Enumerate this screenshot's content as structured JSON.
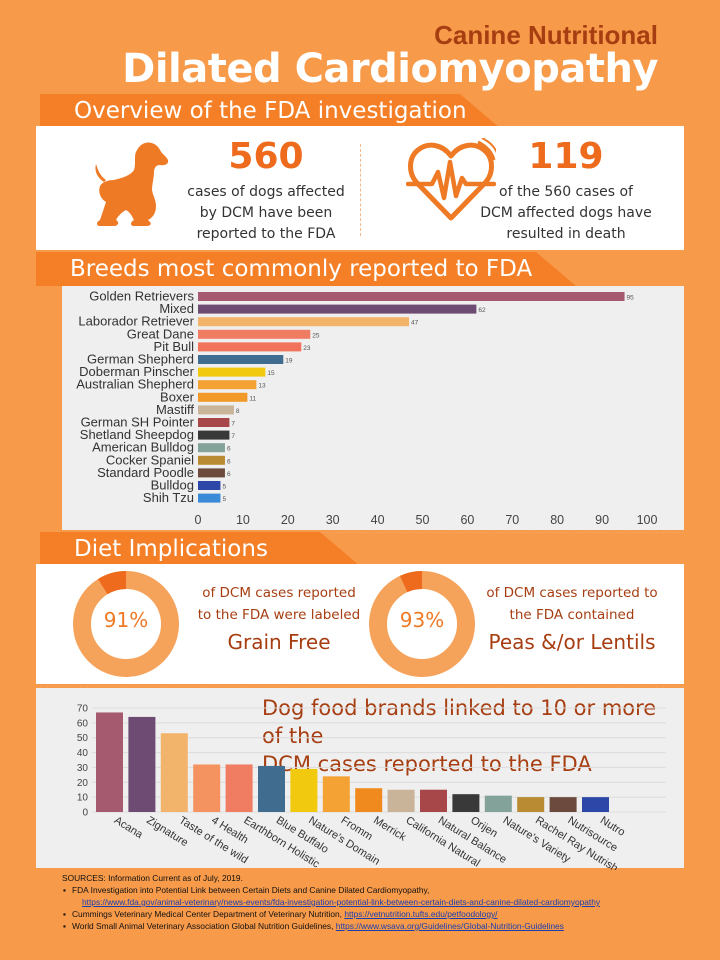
{
  "header": {
    "subtitle": "Canine Nutritional",
    "title": "Dilated Cardiomyopathy"
  },
  "overview": {
    "heading": "Overview of the FDA investigation",
    "stat1": {
      "number": "560",
      "lines": [
        "cases of dogs affected",
        "by DCM have been",
        "reported to the FDA"
      ],
      "icon": "dog-icon"
    },
    "stat2": {
      "number": "119",
      "lines": [
        "of the 560 cases of",
        "DCM affected dogs have",
        "resulted in death"
      ],
      "icon": "heartbeat-icon"
    }
  },
  "breeds": {
    "heading": "Breeds most commonly reported to FDA"
  },
  "diet": {
    "heading": "Diet Implications",
    "grain": {
      "percent": "91%",
      "fraction": 0.91,
      "line1": "of DCM cases reported",
      "line2": "to the FDA were labeled",
      "big": "Grain Free"
    },
    "peas": {
      "percent": "93%",
      "fraction": 0.93,
      "line1": "of DCM cases reported to",
      "line2": "the FDA contained",
      "big": "Peas &/or Lentils"
    }
  },
  "brands": {
    "title_line1": "Dog food brands linked to 10 or more of the",
    "title_line2": "DCM cases reported to the FDA"
  },
  "sources": {
    "label": "SOURCES: Information Current as of July, 2019.",
    "item1": "FDA Investigation into Potential Link between Certain Diets and Canine Dilated Cardiomyopathy,",
    "item1_url": "https://www.fda.gov/animal-veterinary/news-events/fda-investigation-potential-link-between-certain-diets-and-canine-dilated-cardiomyopathy",
    "item2": "Cummings Veterinary Medical Center Department of Veterinary Nutrition,",
    "item2_url": "https://vetnutrition.tufts.edu/petfoodology/",
    "item3": "World Small Animal Veterinary Association Global Nutrition Guidelines,",
    "item3_url": "https://www.wsava.org/Guidelines/Global-Nutrition-Guidelines"
  },
  "chart_data": [
    {
      "type": "bar",
      "orientation": "horizontal",
      "categories": [
        "Golden Retrievers",
        "Mixed",
        "Laborador Retriever",
        "Great Dane",
        "Pit Bull",
        "German Shepherd",
        "Doberman Pinscher",
        "Australian Shepherd",
        "Boxer",
        "Mastiff",
        "German SH Pointer",
        "Shetland Sheepdog",
        "American Bulldog",
        "Cocker Spaniel",
        "Standard Poodle",
        "Bulldog",
        "Shih Tzu"
      ],
      "values": [
        95,
        62,
        47,
        25,
        23,
        19,
        15,
        13,
        11,
        8,
        7,
        7,
        6,
        6,
        6,
        5,
        5
      ],
      "colors": [
        "#a55a6f",
        "#6e4b73",
        "#f2b36a",
        "#f07c62",
        "#f2735c",
        "#3f6c8f",
        "#f1c90e",
        "#f3a233",
        "#f19a2a",
        "#c9b49a",
        "#a8474a",
        "#393939",
        "#83a39a",
        "#b98b32",
        "#6c4a3d",
        "#2d47a8",
        "#3a8ad8"
      ],
      "xticks": [
        "0",
        "10",
        "20",
        "30",
        "40",
        "50",
        "60",
        "70",
        "80",
        "90",
        "100"
      ],
      "xlim": [
        0,
        100
      ],
      "data_labels": true,
      "title": "",
      "xlabel": "",
      "ylabel": ""
    },
    {
      "type": "bar",
      "categories": [
        "Acana",
        "Zignature",
        "Taste of the wild",
        "4 Health",
        "Earthborn Holistic",
        "Blue Buffalo",
        "Nature's Domain",
        "Fromm",
        "Merrick",
        "California Natural",
        "Natural Balance",
        "Orijen",
        "Nature's Variety",
        "Rachel Ray Nutrish",
        "Nutrisource",
        "Nutro"
      ],
      "values": [
        67,
        64,
        53,
        32,
        32,
        31,
        29,
        24,
        16,
        15,
        15,
        12,
        11,
        10,
        10,
        10
      ],
      "colors": [
        "#a55a6f",
        "#6e4b73",
        "#f2b36a",
        "#f4935f",
        "#f07c62",
        "#3f6c8f",
        "#f1c90e",
        "#f3a233",
        "#f08a1f",
        "#c9b49a",
        "#a8474a",
        "#393939",
        "#83a39a",
        "#b98b32",
        "#6c4a3d",
        "#2d47a8"
      ],
      "yticks": [
        "0",
        "10",
        "20",
        "30",
        "40",
        "50",
        "60",
        "70"
      ],
      "ylim": [
        0,
        70
      ],
      "title": "Dog food brands linked to 10 or more of the DCM cases reported to the FDA",
      "xlabel": "",
      "ylabel": ""
    }
  ]
}
